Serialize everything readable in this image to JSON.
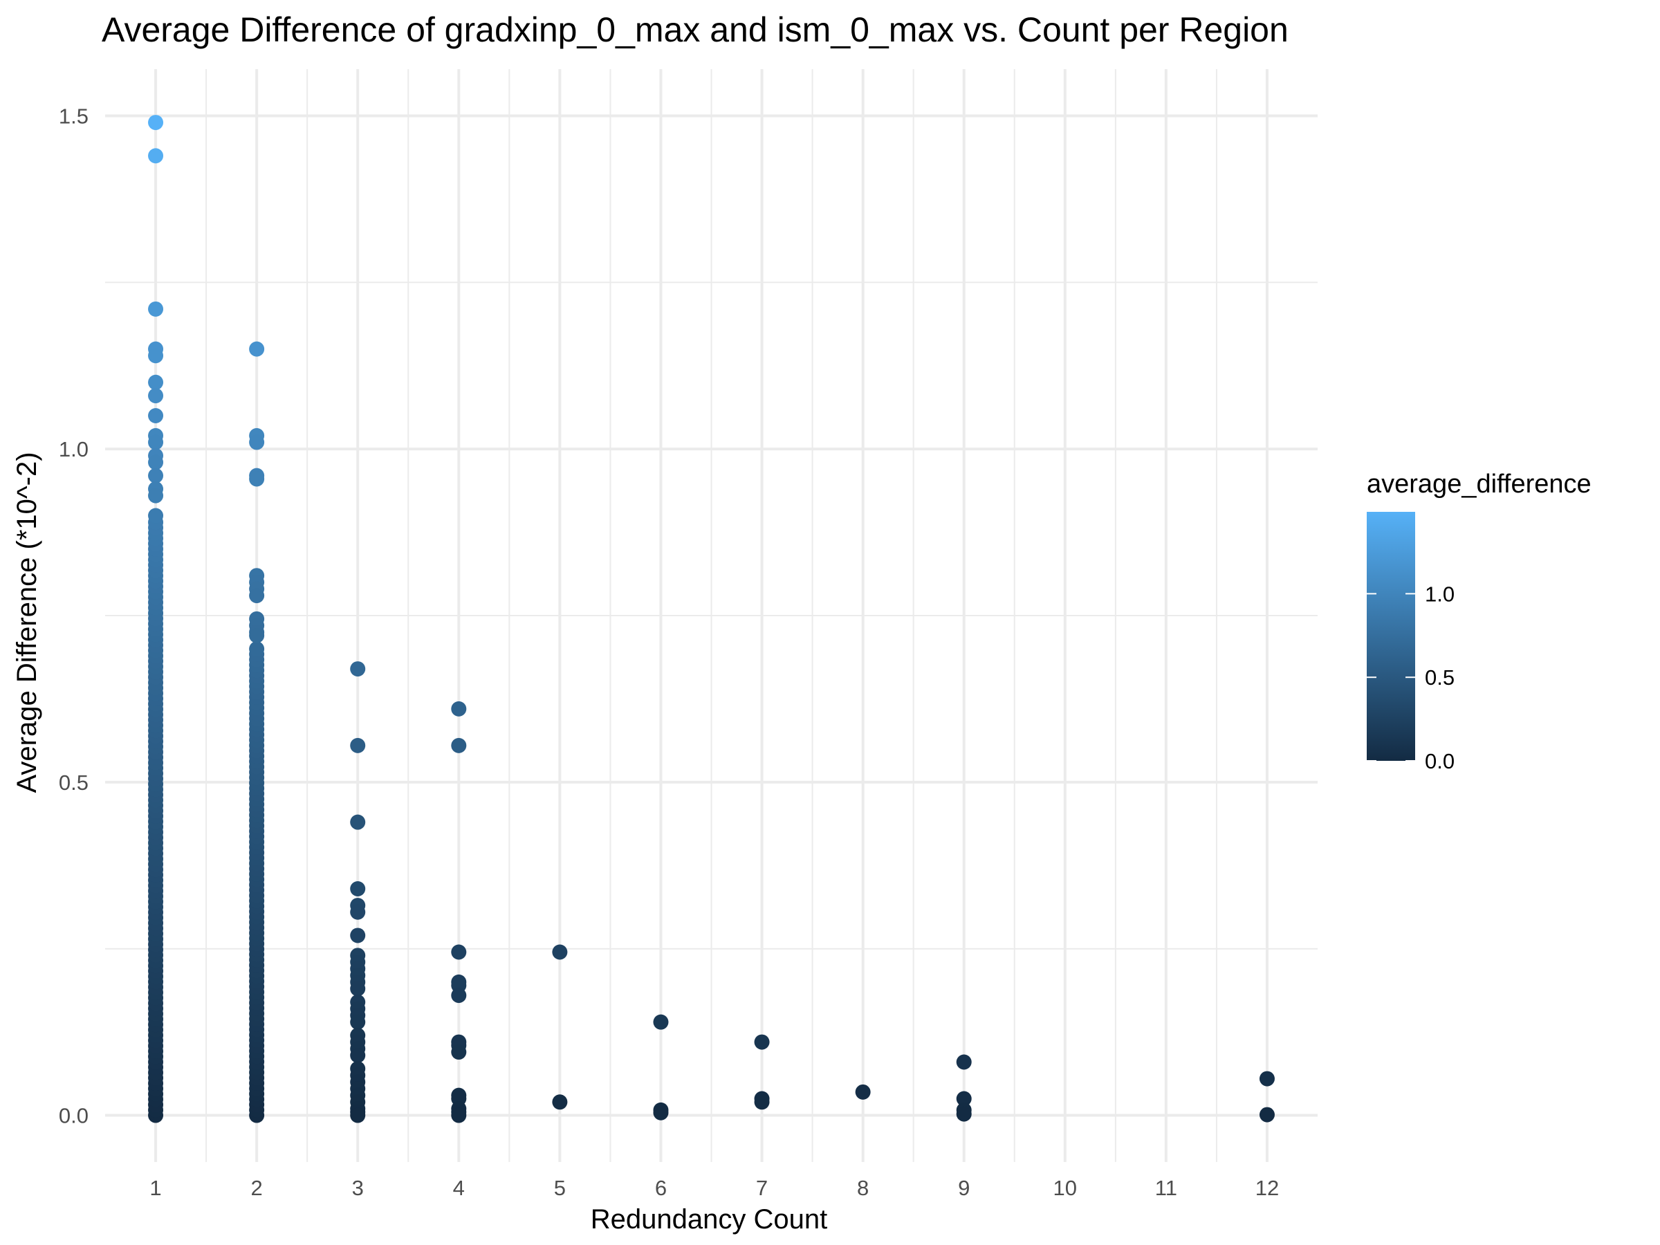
{
  "chart_data": {
    "type": "scatter",
    "title": "Average Difference of gradxinp_0_max and ism_0_max vs. Count per Region",
    "xlabel": "Redundancy Count",
    "ylabel": "Average Difference (*10^-2)",
    "x_ticks": [
      "1",
      "2",
      "3",
      "4",
      "5",
      "6",
      "7",
      "8",
      "9",
      "10",
      "11",
      "12"
    ],
    "y_ticks": [
      "0.0",
      "0.5",
      "1.0",
      "1.5"
    ],
    "xlim": [
      0.5,
      12.5
    ],
    "ylim": [
      -0.07,
      1.57
    ],
    "grid": true,
    "legend": {
      "title": "average_difference",
      "placement": "right",
      "labels": [
        "1.0",
        "0.5",
        "0.0"
      ],
      "color_low": "#132B43",
      "color_high": "#56B1F7",
      "range": [
        0,
        1.49
      ]
    },
    "x": [
      1,
      1,
      1,
      1,
      1,
      1,
      1,
      1,
      1,
      1,
      1,
      1,
      1,
      1,
      1,
      1,
      2,
      2,
      2,
      2,
      2,
      2,
      2,
      2,
      2,
      2,
      2,
      2,
      2,
      3,
      3,
      3,
      3,
      3,
      3,
      3,
      3,
      3,
      3,
      3,
      3,
      3,
      3,
      3,
      3,
      3,
      3,
      3,
      3,
      3,
      3,
      3,
      3,
      3,
      3,
      3,
      3,
      3,
      3,
      4,
      4,
      4,
      4,
      4,
      4,
      4,
      4,
      4,
      4,
      4,
      4,
      4,
      4,
      5,
      5,
      6,
      6,
      6,
      7,
      7,
      7,
      8,
      9,
      9,
      9,
      9,
      12,
      12
    ],
    "y": [
      1.49,
      1.44,
      1.21,
      1.15,
      1.14,
      1.1,
      1.08,
      1.05,
      1.02,
      1.01,
      0.99,
      0.98,
      0.96,
      0.94,
      0.93,
      0.9,
      1.15,
      1.02,
      1.01,
      0.96,
      0.955,
      0.81,
      0.8,
      0.79,
      0.78,
      0.745,
      0.735,
      0.725,
      0.72,
      0.67,
      0.555,
      0.44,
      0.34,
      0.315,
      0.305,
      0.27,
      0.24,
      0.23,
      0.22,
      0.21,
      0.2,
      0.19,
      0.17,
      0.16,
      0.15,
      0.14,
      0.12,
      0.11,
      0.1,
      0.09,
      0.07,
      0.06,
      0.05,
      0.04,
      0.03,
      0.02,
      0.01,
      0.005,
      0.0,
      0.61,
      0.555,
      0.245,
      0.2,
      0.195,
      0.18,
      0.11,
      0.105,
      0.095,
      0.03,
      0.025,
      0.01,
      0.005,
      0.0,
      0.245,
      0.02,
      0.14,
      0.008,
      0.004,
      0.11,
      0.025,
      0.02,
      0.035,
      0.08,
      0.025,
      0.008,
      0.002,
      0.055,
      0.001
    ],
    "dense_columns": [
      {
        "x": 1,
        "y_min": 0.0,
        "y_max": 0.89
      },
      {
        "x": 2,
        "y_min": 0.0,
        "y_max": 0.7
      }
    ]
  }
}
